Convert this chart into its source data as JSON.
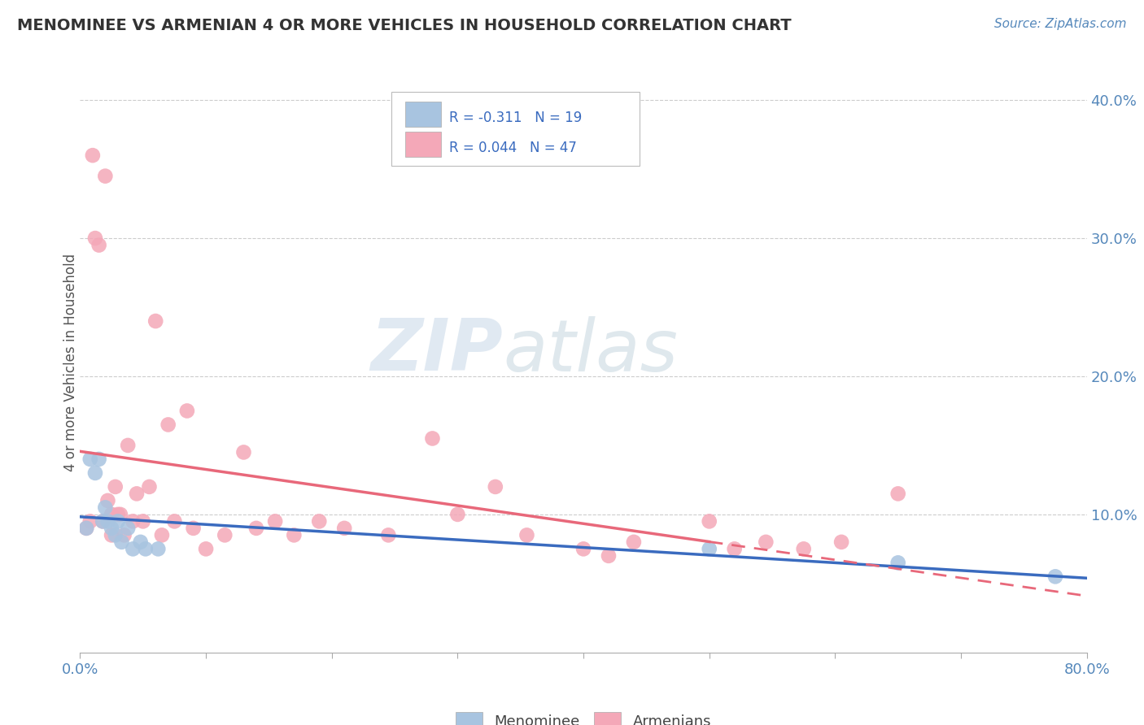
{
  "title": "MENOMINEE VS ARMENIAN 4 OR MORE VEHICLES IN HOUSEHOLD CORRELATION CHART",
  "source": "Source: ZipAtlas.com",
  "ylabel": "4 or more Vehicles in Household",
  "xlim": [
    0.0,
    0.8
  ],
  "ylim": [
    0.0,
    0.42
  ],
  "legend_r1": "R = -0.311",
  "legend_n1": "N = 19",
  "legend_r2": "R = 0.044",
  "legend_n2": "N = 47",
  "menominee_color": "#a8c4e0",
  "armenian_color": "#f4a8b8",
  "menominee_line_color": "#3a6bbf",
  "armenian_line_color": "#e8687a",
  "grid_color": "#cccccc",
  "watermark_zip": "ZIP",
  "watermark_atlas": "atlas",
  "menominee_x": [
    0.005,
    0.008,
    0.012,
    0.015,
    0.018,
    0.02,
    0.022,
    0.025,
    0.028,
    0.03,
    0.033,
    0.038,
    0.042,
    0.048,
    0.052,
    0.062,
    0.5,
    0.65,
    0.775
  ],
  "menominee_y": [
    0.09,
    0.14,
    0.13,
    0.14,
    0.095,
    0.105,
    0.095,
    0.09,
    0.085,
    0.095,
    0.08,
    0.09,
    0.075,
    0.08,
    0.075,
    0.075,
    0.075,
    0.065,
    0.055
  ],
  "armenian_x": [
    0.005,
    0.008,
    0.01,
    0.012,
    0.015,
    0.018,
    0.02,
    0.022,
    0.025,
    0.025,
    0.028,
    0.03,
    0.032,
    0.035,
    0.038,
    0.042,
    0.045,
    0.05,
    0.055,
    0.06,
    0.065,
    0.07,
    0.075,
    0.085,
    0.09,
    0.1,
    0.115,
    0.13,
    0.14,
    0.155,
    0.17,
    0.19,
    0.21,
    0.245,
    0.28,
    0.3,
    0.33,
    0.355,
    0.4,
    0.42,
    0.44,
    0.5,
    0.52,
    0.545,
    0.575,
    0.605,
    0.65
  ],
  "armenian_y": [
    0.09,
    0.095,
    0.36,
    0.3,
    0.295,
    0.095,
    0.345,
    0.11,
    0.1,
    0.085,
    0.12,
    0.1,
    0.1,
    0.085,
    0.15,
    0.095,
    0.115,
    0.095,
    0.12,
    0.24,
    0.085,
    0.165,
    0.095,
    0.175,
    0.09,
    0.075,
    0.085,
    0.145,
    0.09,
    0.095,
    0.085,
    0.095,
    0.09,
    0.085,
    0.155,
    0.1,
    0.12,
    0.085,
    0.075,
    0.07,
    0.08,
    0.095,
    0.075,
    0.08,
    0.075,
    0.08,
    0.115
  ]
}
